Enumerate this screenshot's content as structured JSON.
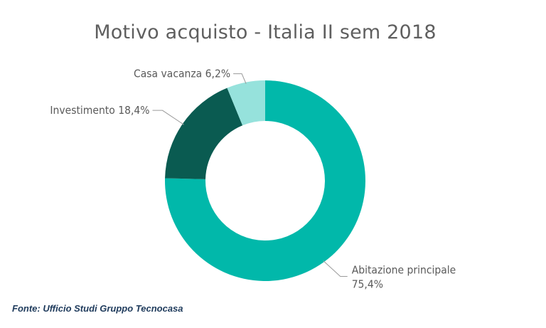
{
  "chart_data": {
    "type": "pie",
    "variant": "donut",
    "title": "Motivo acquisto - Italia II sem 2018",
    "categories": [
      "Abitazione principale",
      "Investimento",
      "Casa vacanza"
    ],
    "values": [
      75.4,
      18.4,
      6.2
    ],
    "value_labels": [
      "75,4%",
      "18,4%",
      "6,2%"
    ],
    "colors": [
      "#01b8aa",
      "#0a5b51",
      "#96e2dc"
    ],
    "legend": "none"
  },
  "source": "Fonte: Ufficio Studi Gruppo Tecnocasa"
}
